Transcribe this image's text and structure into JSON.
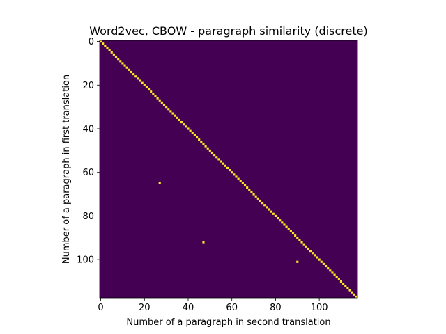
{
  "chart_data": {
    "type": "heatmap",
    "title": "Word2vec, CBOW - paragraph similarity (discrete)",
    "xlabel": "Number of a paragraph in second translation",
    "ylabel": "Number of a paragraph in first translation",
    "n_rows": 118,
    "n_cols": 118,
    "xlim": [
      0,
      117
    ],
    "ylim": [
      117,
      0
    ],
    "x_ticks": [
      "0",
      "20",
      "40",
      "60",
      "80",
      "100"
    ],
    "y_ticks": [
      "0",
      "20",
      "40",
      "60",
      "80",
      "100"
    ],
    "background_value": 0,
    "highlight_value": 1,
    "colors": {
      "low": "#440154",
      "high": "#fde725"
    },
    "grid": false,
    "legend": "none",
    "cells": [
      [
        0,
        0
      ],
      [
        1,
        1
      ],
      [
        2,
        2
      ],
      [
        3,
        3
      ],
      [
        4,
        4
      ],
      [
        5,
        5
      ],
      [
        6,
        6
      ],
      [
        7,
        7
      ],
      [
        8,
        8
      ],
      [
        9,
        9
      ],
      [
        10,
        10
      ],
      [
        11,
        11
      ],
      [
        12,
        12
      ],
      [
        13,
        13
      ],
      [
        14,
        14
      ],
      [
        15,
        15
      ],
      [
        16,
        16
      ],
      [
        17,
        17
      ],
      [
        18,
        18
      ],
      [
        19,
        19
      ],
      [
        20,
        20
      ],
      [
        21,
        21
      ],
      [
        22,
        22
      ],
      [
        23,
        23
      ],
      [
        24,
        24
      ],
      [
        25,
        25
      ],
      [
        26,
        26
      ],
      [
        27,
        27
      ],
      [
        28,
        28
      ],
      [
        29,
        29
      ],
      [
        30,
        30
      ],
      [
        31,
        31
      ],
      [
        32,
        32
      ],
      [
        33,
        33
      ],
      [
        34,
        34
      ],
      [
        35,
        35
      ],
      [
        36,
        36
      ],
      [
        37,
        37
      ],
      [
        38,
        38
      ],
      [
        39,
        39
      ],
      [
        40,
        40
      ],
      [
        41,
        41
      ],
      [
        42,
        42
      ],
      [
        43,
        43
      ],
      [
        44,
        44
      ],
      [
        45,
        45
      ],
      [
        46,
        46
      ],
      [
        47,
        47
      ],
      [
        48,
        48
      ],
      [
        49,
        49
      ],
      [
        50,
        50
      ],
      [
        51,
        51
      ],
      [
        52,
        52
      ],
      [
        53,
        53
      ],
      [
        54,
        54
      ],
      [
        55,
        55
      ],
      [
        56,
        56
      ],
      [
        57,
        57
      ],
      [
        58,
        58
      ],
      [
        59,
        59
      ],
      [
        60,
        60
      ],
      [
        61,
        61
      ],
      [
        62,
        62
      ],
      [
        63,
        63
      ],
      [
        64,
        64
      ],
      [
        65,
        65
      ],
      [
        66,
        66
      ],
      [
        67,
        67
      ],
      [
        68,
        68
      ],
      [
        69,
        69
      ],
      [
        70,
        70
      ],
      [
        71,
        71
      ],
      [
        72,
        72
      ],
      [
        73,
        73
      ],
      [
        74,
        74
      ],
      [
        75,
        75
      ],
      [
        76,
        76
      ],
      [
        77,
        77
      ],
      [
        78,
        78
      ],
      [
        79,
        79
      ],
      [
        80,
        80
      ],
      [
        81,
        81
      ],
      [
        82,
        82
      ],
      [
        83,
        83
      ],
      [
        84,
        84
      ],
      [
        85,
        85
      ],
      [
        86,
        86
      ],
      [
        87,
        87
      ],
      [
        88,
        88
      ],
      [
        89,
        89
      ],
      [
        90,
        90
      ],
      [
        91,
        91
      ],
      [
        92,
        92
      ],
      [
        93,
        93
      ],
      [
        94,
        94
      ],
      [
        95,
        95
      ],
      [
        96,
        96
      ],
      [
        97,
        97
      ],
      [
        98,
        98
      ],
      [
        99,
        99
      ],
      [
        100,
        100
      ],
      [
        101,
        101
      ],
      [
        102,
        102
      ],
      [
        103,
        103
      ],
      [
        104,
        104
      ],
      [
        105,
        105
      ],
      [
        106,
        106
      ],
      [
        107,
        107
      ],
      [
        108,
        108
      ],
      [
        109,
        109
      ],
      [
        110,
        110
      ],
      [
        111,
        111
      ],
      [
        112,
        112
      ],
      [
        113,
        113
      ],
      [
        114,
        114
      ],
      [
        115,
        115
      ],
      [
        116,
        116
      ],
      [
        117,
        117
      ],
      [
        65,
        27
      ],
      [
        92,
        47
      ],
      [
        101,
        90
      ]
    ]
  }
}
